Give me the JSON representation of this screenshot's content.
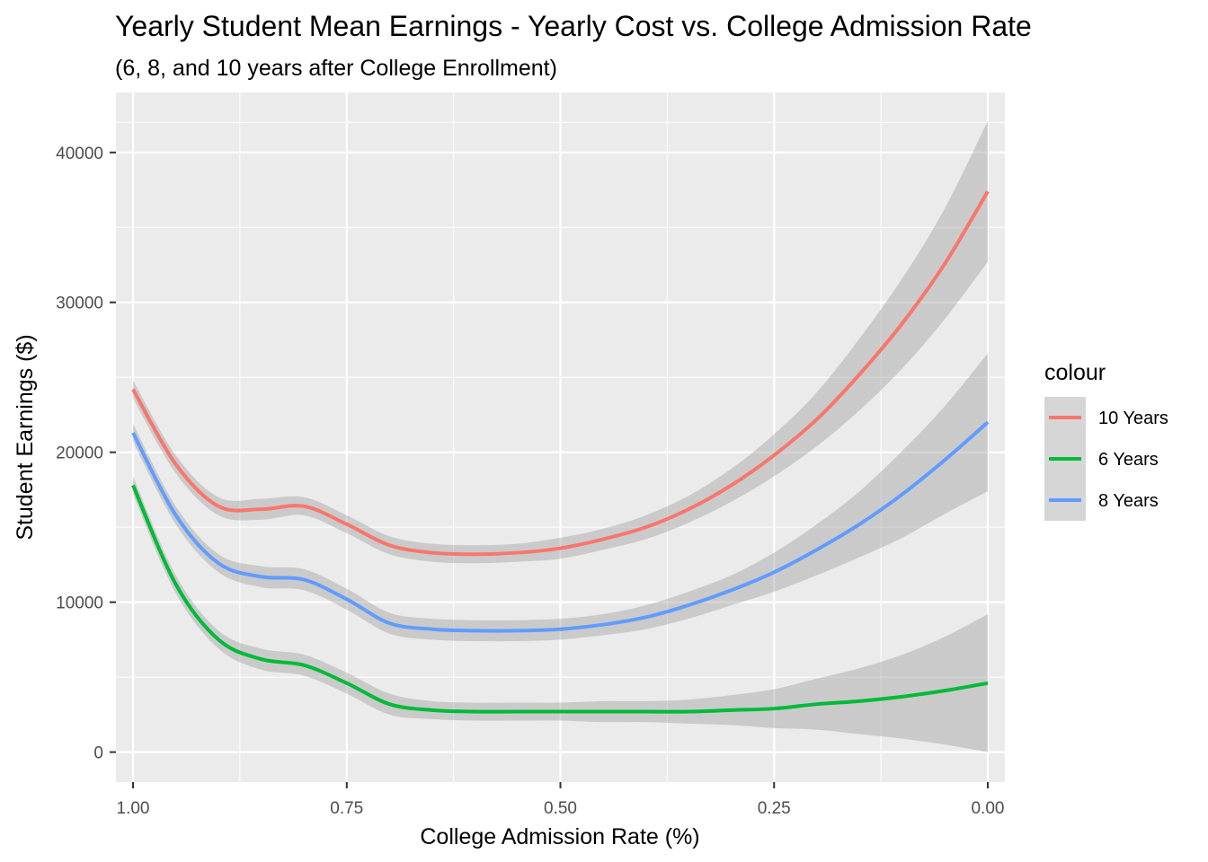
{
  "chart_data": {
    "type": "line",
    "title": "Yearly Student Mean Earnings - Yearly Cost vs. College Admission Rate",
    "subtitle": "(6, 8, and 10 years after College Enrollment)",
    "xlabel": "College Admission Rate (%)",
    "ylabel": "Student Earnings ($)",
    "x_reversed": true,
    "xlim": [
      1.02,
      -0.02
    ],
    "ylim": [
      -2000,
      44000
    ],
    "x_ticks": [
      1.0,
      0.75,
      0.5,
      0.25,
      0.0
    ],
    "x_tick_labels": [
      "1.00",
      "0.75",
      "0.50",
      "0.25",
      "0.00"
    ],
    "y_ticks": [
      0,
      10000,
      20000,
      30000,
      40000
    ],
    "y_tick_labels": [
      "0",
      "10000",
      "20000",
      "30000",
      "40000"
    ],
    "grid": true,
    "legend": {
      "title": "colour",
      "position": "right"
    },
    "series": [
      {
        "name": "10 Years",
        "color": "#F8766D",
        "x": [
          1.0,
          0.95,
          0.9,
          0.85,
          0.8,
          0.75,
          0.7,
          0.65,
          0.6,
          0.55,
          0.5,
          0.45,
          0.4,
          0.35,
          0.3,
          0.25,
          0.2,
          0.15,
          0.1,
          0.05,
          0.0
        ],
        "y": [
          24200,
          19200,
          16400,
          16200,
          16400,
          15200,
          13800,
          13300,
          13200,
          13300,
          13600,
          14200,
          15000,
          16200,
          17800,
          19800,
          22200,
          25200,
          28600,
          32600,
          37400
        ],
        "ci_low": [
          23600,
          18600,
          15800,
          15500,
          15800,
          14600,
          13200,
          12700,
          12600,
          12700,
          12900,
          13500,
          14200,
          15300,
          16700,
          18400,
          20400,
          22800,
          25600,
          28900,
          32700
        ],
        "ci_high": [
          24800,
          19800,
          17000,
          16900,
          17000,
          15800,
          14400,
          13900,
          13800,
          13900,
          14300,
          14900,
          15800,
          17100,
          18900,
          21200,
          24000,
          27600,
          31600,
          36300,
          42100
        ]
      },
      {
        "name": "6 Years",
        "color": "#00BA38",
        "x": [
          1.0,
          0.95,
          0.9,
          0.85,
          0.8,
          0.75,
          0.7,
          0.65,
          0.6,
          0.55,
          0.5,
          0.45,
          0.4,
          0.35,
          0.3,
          0.25,
          0.2,
          0.15,
          0.1,
          0.05,
          0.0
        ],
        "y": [
          17800,
          11200,
          7500,
          6200,
          5800,
          4600,
          3200,
          2800,
          2700,
          2700,
          2700,
          2700,
          2700,
          2700,
          2800,
          2900,
          3200,
          3400,
          3700,
          4100,
          4600
        ],
        "ci_low": [
          17200,
          10600,
          6900,
          5500,
          5100,
          3900,
          2500,
          2200,
          2100,
          2100,
          2100,
          2000,
          2000,
          1900,
          1800,
          1600,
          1500,
          1200,
          900,
          500,
          0
        ],
        "ci_high": [
          18400,
          11800,
          8100,
          6900,
          6500,
          5300,
          3900,
          3400,
          3300,
          3300,
          3300,
          3400,
          3400,
          3500,
          3800,
          4200,
          4900,
          5600,
          6500,
          7700,
          9200
        ]
      },
      {
        "name": "8 Years",
        "color": "#619CFF",
        "x": [
          1.0,
          0.95,
          0.9,
          0.85,
          0.8,
          0.75,
          0.7,
          0.65,
          0.6,
          0.55,
          0.5,
          0.45,
          0.4,
          0.35,
          0.3,
          0.25,
          0.2,
          0.15,
          0.1,
          0.05,
          0.0
        ],
        "y": [
          21300,
          15800,
          12600,
          11700,
          11500,
          10200,
          8600,
          8200,
          8100,
          8100,
          8200,
          8500,
          9000,
          9800,
          10800,
          12000,
          13500,
          15200,
          17200,
          19500,
          22000
        ],
        "ci_low": [
          20700,
          15200,
          12000,
          11000,
          10800,
          9500,
          7900,
          7500,
          7400,
          7400,
          7500,
          7800,
          8200,
          8900,
          9800,
          10700,
          11800,
          13000,
          14300,
          15900,
          17400
        ],
        "ci_high": [
          21900,
          16400,
          13200,
          12400,
          12200,
          10900,
          9300,
          8900,
          8800,
          8800,
          8900,
          9200,
          9800,
          10700,
          11800,
          13300,
          15200,
          17400,
          20100,
          23100,
          26600
        ]
      }
    ]
  }
}
